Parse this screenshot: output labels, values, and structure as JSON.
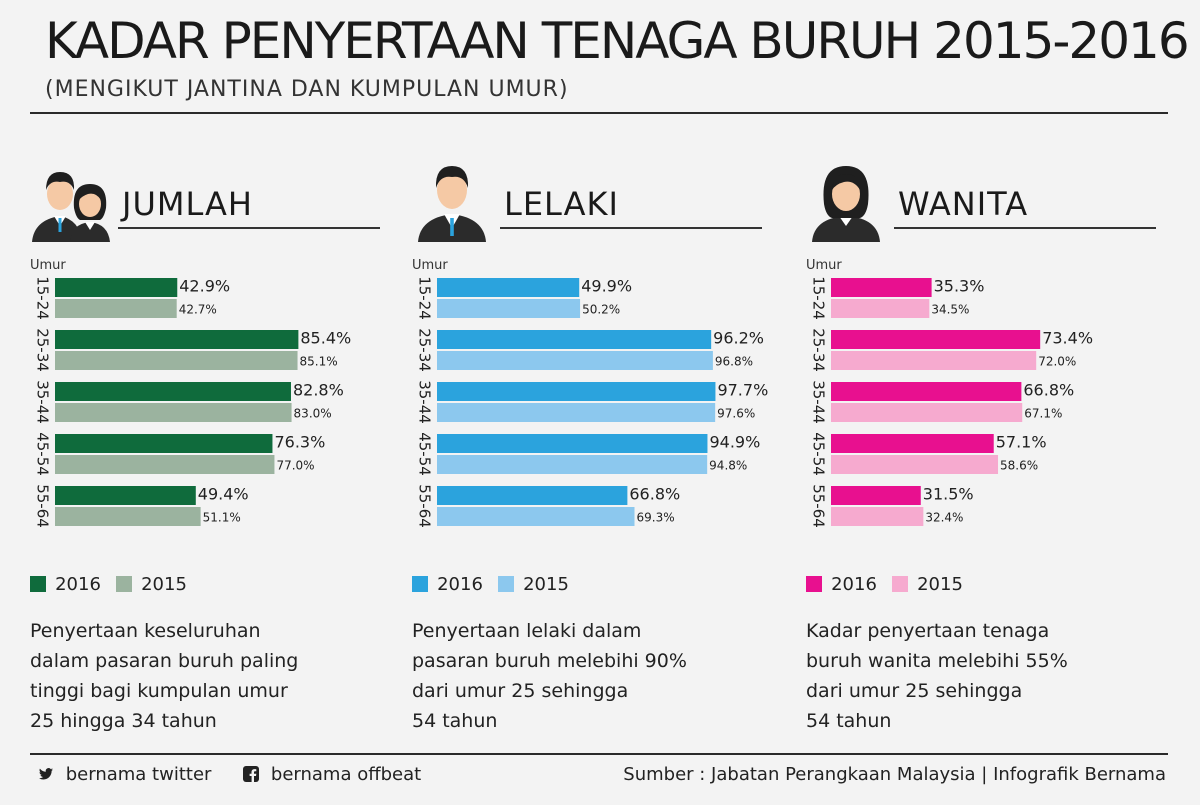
{
  "title": "KADAR PENYERTAAN TENAGA BURUH 2015-2016",
  "subtitle": "(MENGIKUT JANTINA DAN KUMPULAN UMUR)",
  "chart_data": [
    {
      "type": "bar",
      "title": "JUMLAH",
      "ylabel": "Umur",
      "categories": [
        "15-24",
        "25-34",
        "35-44",
        "45-54",
        "55-64"
      ],
      "series": [
        {
          "name": "2016",
          "color": "#0f6b3c",
          "values": [
            42.9,
            85.4,
            82.8,
            76.3,
            49.4
          ]
        },
        {
          "name": "2015",
          "color": "#9bb39f",
          "values": [
            42.7,
            85.1,
            83.0,
            77.0,
            51.1
          ]
        }
      ],
      "xlim": [
        0,
        100
      ]
    },
    {
      "type": "bar",
      "title": "LELAKI",
      "ylabel": "Umur",
      "categories": [
        "15-24",
        "25-34",
        "35-44",
        "45-54",
        "55-64"
      ],
      "series": [
        {
          "name": "2016",
          "color": "#2ba3dd",
          "values": [
            49.9,
            96.2,
            97.7,
            94.9,
            66.8
          ]
        },
        {
          "name": "2015",
          "color": "#8cc8ee",
          "values": [
            50.2,
            96.8,
            97.6,
            94.8,
            69.3
          ]
        }
      ],
      "xlim": [
        0,
        100
      ]
    },
    {
      "type": "bar",
      "title": "WANITA",
      "ylabel": "Umur",
      "categories": [
        "15-24",
        "25-34",
        "35-44",
        "45-54",
        "55-64"
      ],
      "series": [
        {
          "name": "2016",
          "color": "#e8108f",
          "values": [
            35.3,
            73.4,
            66.8,
            57.1,
            31.5
          ]
        },
        {
          "name": "2015",
          "color": "#f6aacf",
          "values": [
            34.5,
            72.0,
            67.1,
            58.6,
            32.4
          ]
        }
      ],
      "xlim": [
        0,
        100
      ]
    }
  ],
  "panels": [
    {
      "avatar_icon": "couple-icon",
      "heading": "JUMLAH",
      "axis_label": "Umur",
      "legend": [
        {
          "label": "2016",
          "color": "#0f6b3c"
        },
        {
          "label": "2015",
          "color": "#9bb39f"
        }
      ],
      "description": [
        "Penyertaan keseluruhan",
        "dalam pasaran buruh paling",
        "tinggi bagi kumpulan umur",
        "25 hingga 34 tahun"
      ]
    },
    {
      "avatar_icon": "man-icon",
      "heading": "LELAKI",
      "axis_label": "Umur",
      "legend": [
        {
          "label": "2016",
          "color": "#2ba3dd"
        },
        {
          "label": "2015",
          "color": "#8cc8ee"
        }
      ],
      "description": [
        "Penyertaan lelaki dalam",
        "pasaran buruh melebihi 90%",
        "dari umur 25 sehingga",
        "54 tahun"
      ]
    },
    {
      "avatar_icon": "woman-icon",
      "heading": "WANITA",
      "axis_label": "Umur",
      "legend": [
        {
          "label": "2016",
          "color": "#e8108f"
        },
        {
          "label": "2015",
          "color": "#f6aacf"
        }
      ],
      "description": [
        "Kadar penyertaan tenaga",
        "buruh wanita melebihi 55%",
        "dari umur 25 sehingga",
        "54 tahun"
      ]
    }
  ],
  "footer": {
    "twitter": "bernama twitter",
    "facebook": "bernama offbeat",
    "source": "Sumber : Jabatan Perangkaan Malaysia  |  Infografik Bernama"
  }
}
